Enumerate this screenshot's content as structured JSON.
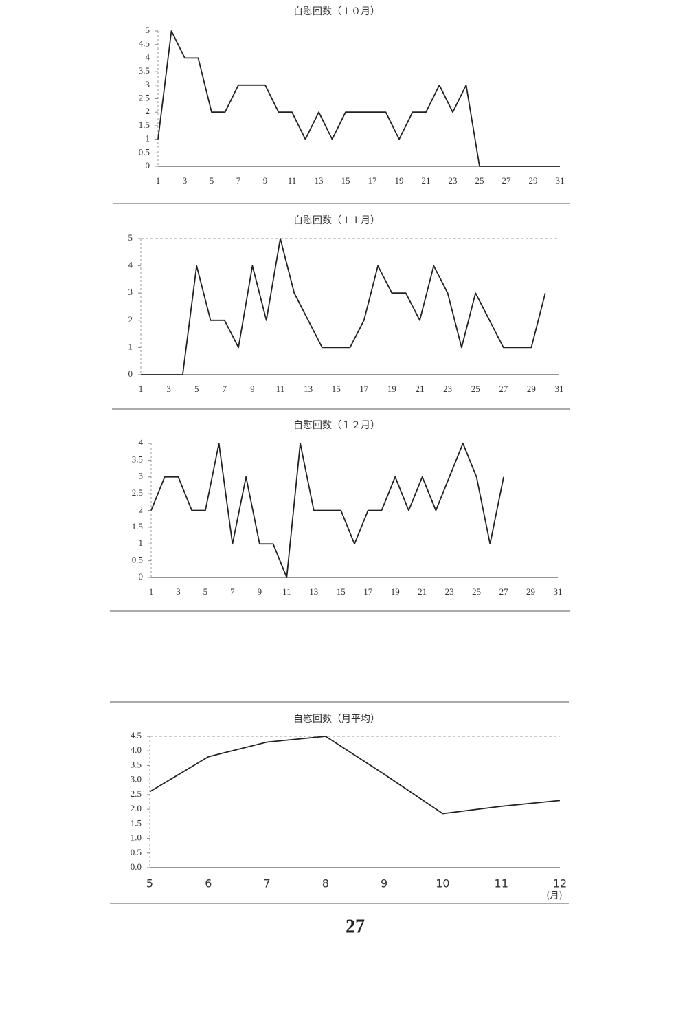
{
  "chart_data": [
    {
      "type": "line",
      "title": "自慰回数（１０月）",
      "x": [
        1,
        2,
        3,
        4,
        5,
        6,
        7,
        8,
        9,
        10,
        11,
        12,
        13,
        14,
        15,
        16,
        17,
        18,
        19,
        20,
        21,
        22,
        23,
        24,
        25,
        26,
        27,
        28,
        29,
        30,
        31
      ],
      "values": [
        1,
        5,
        4,
        4,
        2,
        2,
        3,
        3,
        3,
        2,
        2,
        1,
        2,
        1,
        2,
        2,
        2,
        2,
        1,
        2,
        2,
        3,
        2,
        3,
        0,
        0,
        0,
        0,
        0,
        0,
        0
      ],
      "color": "#222",
      "xlim": [
        1,
        31
      ],
      "xticks": [
        1,
        3,
        5,
        7,
        9,
        11,
        13,
        15,
        17,
        19,
        21,
        23,
        25,
        27,
        29,
        31
      ],
      "ylim": [
        0,
        5
      ],
      "yticks": [
        0,
        0.5,
        1,
        1.5,
        2,
        2.5,
        3,
        3.5,
        4,
        4.5,
        5
      ]
    },
    {
      "type": "line",
      "title": "自慰回数（１１月）",
      "x": [
        1,
        2,
        3,
        4,
        5,
        6,
        7,
        8,
        9,
        10,
        11,
        12,
        13,
        14,
        15,
        16,
        17,
        18,
        19,
        20,
        21,
        22,
        23,
        24,
        25,
        26,
        27,
        28,
        29,
        30
      ],
      "values": [
        0,
        0,
        0,
        0,
        4,
        2,
        2,
        1,
        4,
        2,
        5,
        3,
        2,
        1,
        1,
        1,
        2,
        4,
        3,
        3,
        2,
        4,
        3,
        1,
        3,
        2,
        1,
        1,
        1,
        3
      ],
      "color": "#222",
      "xlim": [
        1,
        31
      ],
      "xticks": [
        1,
        3,
        5,
        7,
        9,
        11,
        13,
        15,
        17,
        19,
        21,
        23,
        25,
        27,
        29,
        31
      ],
      "ylim": [
        0,
        5
      ],
      "yticks": [
        0,
        1,
        2,
        3,
        4,
        5
      ]
    },
    {
      "type": "line",
      "title": "自慰回数（１２月）",
      "x": [
        1,
        2,
        3,
        4,
        5,
        6,
        7,
        8,
        9,
        10,
        11,
        12,
        13,
        14,
        15,
        16,
        17,
        18,
        19,
        20,
        21,
        22,
        23,
        24,
        25,
        26,
        27
      ],
      "values": [
        2,
        3,
        3,
        2,
        2,
        4,
        1,
        3,
        1,
        1,
        0,
        4,
        2,
        2,
        2,
        1,
        2,
        2,
        3,
        2,
        3,
        2,
        3,
        4,
        3,
        1,
        3
      ],
      "color": "#222",
      "xlim": [
        1,
        31
      ],
      "xticks": [
        1,
        3,
        5,
        7,
        9,
        11,
        13,
        15,
        17,
        19,
        21,
        23,
        25,
        27,
        29,
        31
      ],
      "ylim": [
        0,
        4
      ],
      "yticks": [
        0,
        0.5,
        1,
        1.5,
        2,
        2.5,
        3,
        3.5,
        4
      ]
    },
    {
      "type": "line",
      "title": "自慰回数（月平均）",
      "categories": [
        "5",
        "6",
        "7",
        "8",
        "9",
        "10",
        "11",
        "12"
      ],
      "values": [
        2.6,
        3.8,
        4.3,
        4.5,
        3.2,
        1.85,
        2.1,
        2.3
      ],
      "x_unit": "(月)",
      "color": "#222",
      "ylim": [
        0,
        4.5
      ],
      "yticks": [
        {
          "value": 0,
          "label": "0.0"
        },
        0.5,
        {
          "value": 1,
          "label": "1.0"
        },
        1.5,
        {
          "value": 2,
          "label": "2.0"
        },
        2.5,
        {
          "value": 3,
          "label": "3.0"
        },
        3.5,
        {
          "value": 4,
          "label": "4.0"
        },
        4.5
      ]
    }
  ],
  "page_number": "27"
}
